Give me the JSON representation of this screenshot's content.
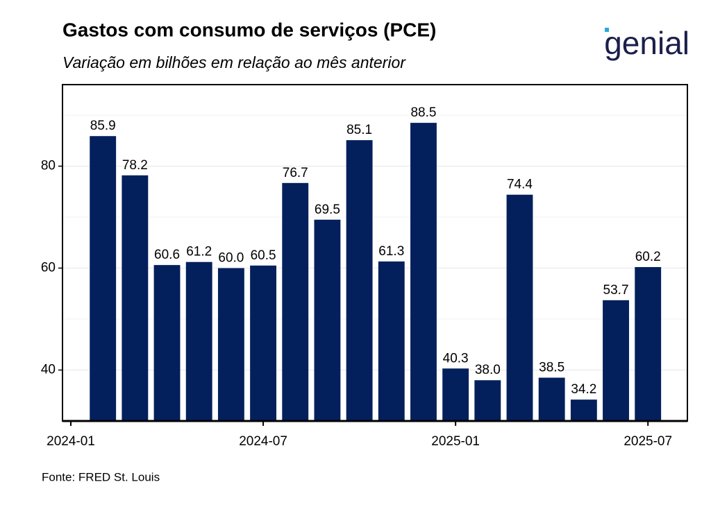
{
  "chart_data": {
    "type": "bar",
    "title": "Gastos com consumo de serviços (PCE)",
    "subtitle": "Variação em bilhões em relação ao mês anterior",
    "source": "Fonte: FRED St. Louis",
    "logo": "genial",
    "x": [
      "2024-02",
      "2024-03",
      "2024-04",
      "2024-05",
      "2024-06",
      "2024-07",
      "2024-08",
      "2024-09",
      "2024-10",
      "2024-11",
      "2024-12",
      "2025-01",
      "2025-02",
      "2025-03",
      "2025-04",
      "2025-05",
      "2025-06",
      "2025-07"
    ],
    "values": [
      85.9,
      78.2,
      60.6,
      61.2,
      60.0,
      60.5,
      76.7,
      69.5,
      85.1,
      61.3,
      88.5,
      40.3,
      38.0,
      74.4,
      38.5,
      34.2,
      53.7,
      60.2
    ],
    "value_labels": [
      "85.9",
      "78.2",
      "60.6",
      "61.2",
      "60.0",
      "60.5",
      "76.7",
      "69.5",
      "85.1",
      "61.3",
      "88.5",
      "40.3",
      "38.0",
      "74.4",
      "38.5",
      "34.2",
      "53.7",
      "60.2"
    ],
    "color": "#03205c",
    "xticks": [
      "2024-01",
      "2024-07",
      "2025-01",
      "2025-07"
    ],
    "ylim": [
      30,
      96
    ],
    "yticks": [
      40,
      60,
      80
    ],
    "yminor": [
      50,
      70,
      90
    ],
    "grid": true
  }
}
